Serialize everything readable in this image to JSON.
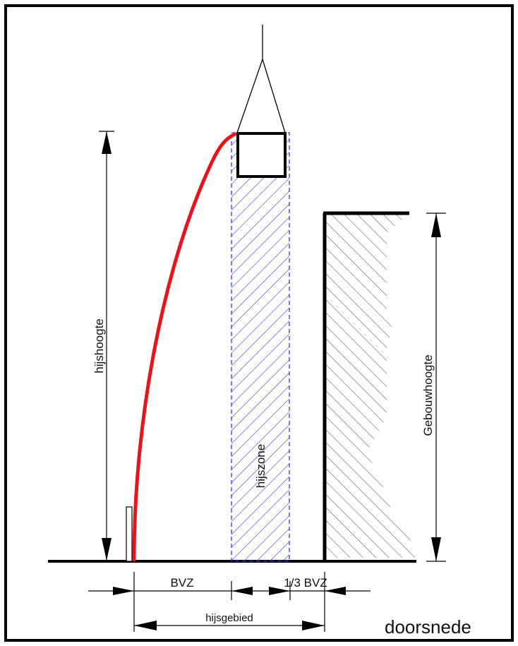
{
  "labels": {
    "hijshoogte": "hijshoogte",
    "gebouwhoogte": "Gebouwhoogte",
    "hijszone": "hijszone",
    "bvz": "BVZ",
    "third_bvz": "1/3  BVZ",
    "hijsgebied": "hijsgebied",
    "doorsnede": "doorsnede"
  },
  "colors": {
    "frame": "#000000",
    "crane_cable": "#e8141b",
    "hijszone_hatch": "#2f3fe0",
    "building_hatch": "#555555",
    "lines": "#111111"
  }
}
